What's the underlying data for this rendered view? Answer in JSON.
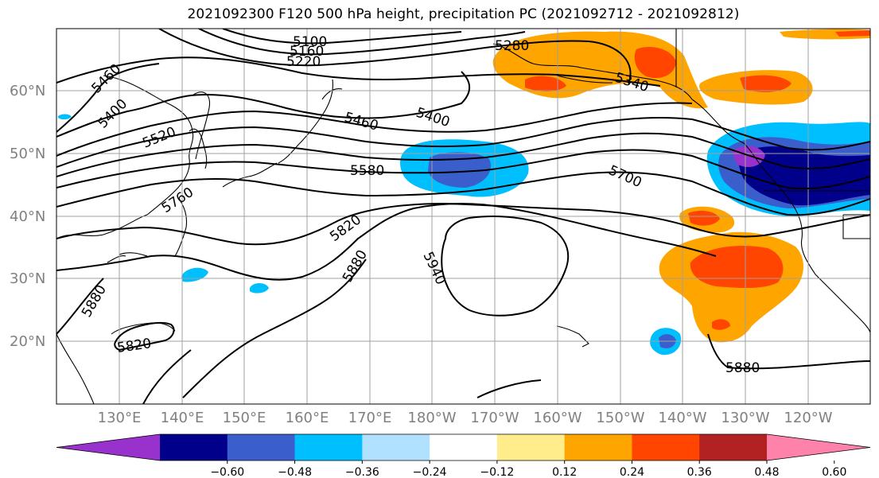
{
  "title": "2021092300 F120 500 hPa height, precipitation PC (2021092712 - 2021092812)",
  "lat_labels": [
    "60°N",
    "50°N",
    "40°N",
    "30°N",
    "20°N"
  ],
  "lon_labels": [
    "130°E",
    "140°E",
    "150°E",
    "160°E",
    "170°E",
    "180°W",
    "170°W",
    "160°W",
    "150°W",
    "140°W",
    "130°W",
    "120°W"
  ],
  "contour_labels": [
    "5100",
    "5160",
    "5220",
    "5280",
    "5340",
    "5460",
    "5400",
    "5520",
    "5400",
    "5460",
    "5400",
    "5580",
    "5700",
    "5760",
    "5820",
    "5880",
    "5940",
    "5880",
    "5820",
    "5880",
    "5880"
  ],
  "colorbar": {
    "colors": [
      "#9932cc",
      "#00008b",
      "#3a5fcd",
      "#00bfff",
      "#b0e2ff",
      "#ffffff",
      "#ffec8b",
      "#ffa500",
      "#ff4500",
      "#b22222",
      "#ff82ab"
    ],
    "tick_labels": [
      "−0.60",
      "−0.48",
      "−0.36",
      "−0.24",
      "−0.12",
      "0.12",
      "0.24",
      "0.36",
      "0.48",
      "0.60"
    ]
  },
  "colors": {
    "grid": "#a0a0a0",
    "axis_label": "#808080"
  }
}
